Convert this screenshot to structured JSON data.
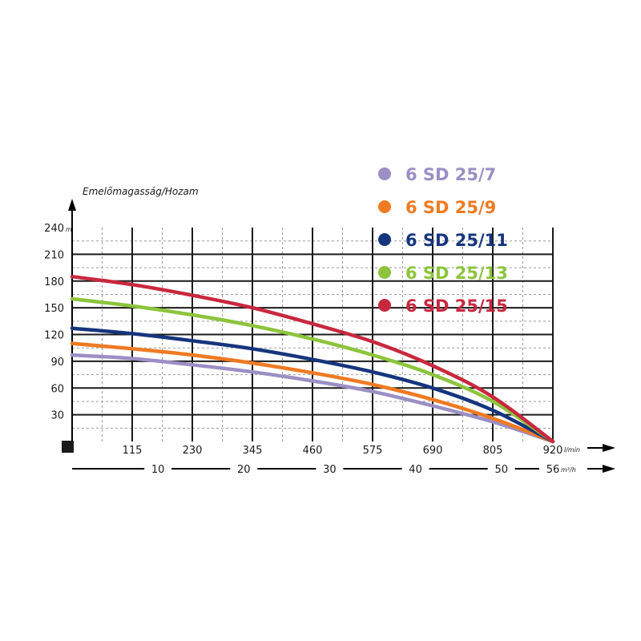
{
  "chart_data": {
    "type": "line",
    "ylabel": "Emelőmagasság/Hozam",
    "y_unit": "m",
    "x_unit_lmin": "l/min",
    "x_unit_m3h": "m³/h",
    "ylim": [
      0,
      240
    ],
    "xlim": [
      0,
      920
    ],
    "y_ticks": [
      30,
      60,
      90,
      120,
      150,
      180,
      210,
      240
    ],
    "x_ticks_lmin": [
      115,
      230,
      345,
      460,
      575,
      690,
      805,
      920
    ],
    "x_ticks_m3h": [
      10,
      20,
      30,
      40,
      50,
      56
    ],
    "grid": true,
    "legend_position": "top-right",
    "series": [
      {
        "name": "6 SD 25/7",
        "color": "#9b8fc4",
        "x": [
          0,
          115,
          230,
          345,
          460,
          575,
          690,
          805,
          920
        ],
        "y": [
          97,
          93,
          86,
          78,
          68,
          56,
          40,
          22,
          0
        ]
      },
      {
        "name": "6 SD 25/9",
        "color": "#ef7a22",
        "x": [
          0,
          115,
          230,
          345,
          460,
          575,
          690,
          805,
          920
        ],
        "y": [
          110,
          104,
          97,
          88,
          77,
          64,
          47,
          26,
          0
        ]
      },
      {
        "name": "6 SD 25/11",
        "color": "#16357d",
        "x": [
          0,
          115,
          230,
          345,
          460,
          575,
          690,
          805,
          920
        ],
        "y": [
          127,
          121,
          113,
          104,
          92,
          78,
          60,
          35,
          0
        ]
      },
      {
        "name": "6 SD 25/13",
        "color": "#8cc43c",
        "x": [
          0,
          115,
          230,
          345,
          460,
          575,
          690,
          805,
          920
        ],
        "y": [
          160,
          152,
          142,
          130,
          115,
          97,
          75,
          45,
          0
        ]
      },
      {
        "name": "6 SD 25/15",
        "color": "#c8283e",
        "x": [
          0,
          115,
          230,
          345,
          460,
          575,
          690,
          805,
          920
        ],
        "y": [
          185,
          176,
          164,
          150,
          132,
          112,
          85,
          50,
          0
        ]
      }
    ]
  }
}
